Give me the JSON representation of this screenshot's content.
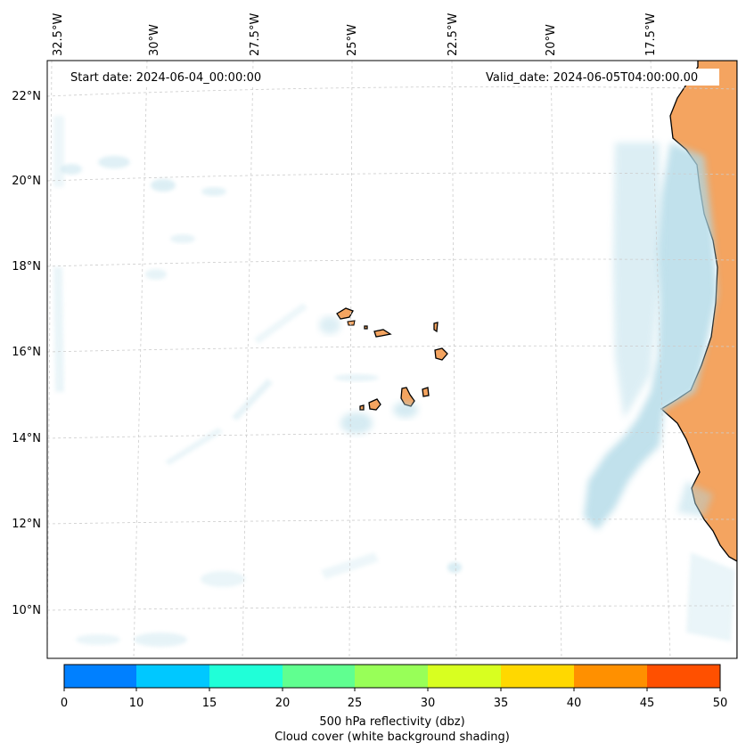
{
  "map": {
    "start_date": "Start date: 2024-06-04_00:00:00",
    "valid_date": "Valid_date: 2024-06-05T04:00:00.00",
    "lon_labels": [
      "32.5°W",
      "30°W",
      "27.5°W",
      "25°W",
      "22.5°W",
      "20°W",
      "17.5°W"
    ],
    "lat_labels": [
      "22°N",
      "20°N",
      "18°N",
      "16°N",
      "14°N",
      "12°N",
      "10°N"
    ],
    "land_color": "#f4a460",
    "cloud_color": "#add8e6",
    "coast_color": "#000000"
  },
  "colorbar": {
    "ticks": [
      "0",
      "10",
      "15",
      "20",
      "25",
      "30",
      "35",
      "40",
      "45",
      "50"
    ],
    "colors": [
      "#0080ff",
      "#00c8ff",
      "#20ffd8",
      "#60ff90",
      "#98ff58",
      "#d8ff20",
      "#ffd800",
      "#ff9000",
      "#ff5000"
    ],
    "label_line1": "500 hPa reflectivity (dbz)",
    "label_line2": "Cloud cover (white background shading)"
  }
}
